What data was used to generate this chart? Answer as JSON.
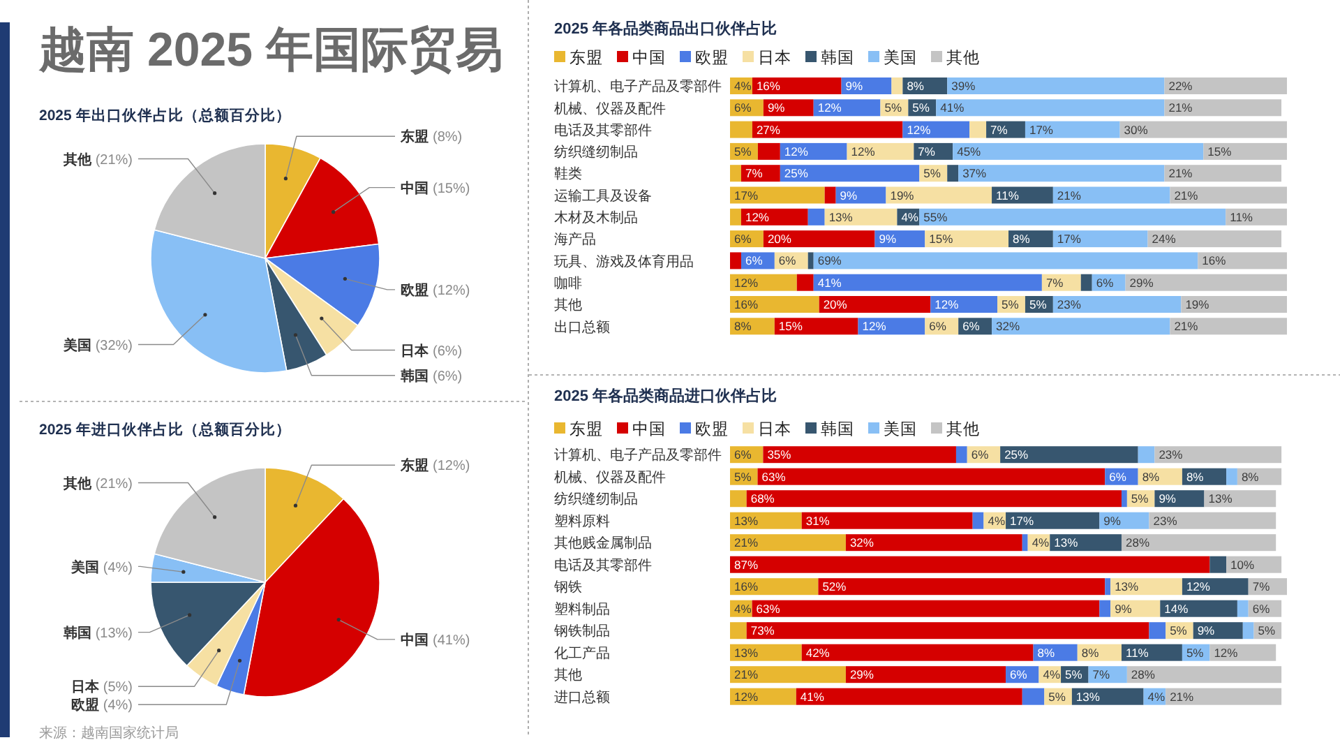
{
  "chart_data": [
    {
      "type": "pie",
      "title": "越南 2025 年国际贸易",
      "subtitle": "2025 年出口伙伴占比（总额百分比）",
      "categories": [
        "东盟",
        "中国",
        "欧盟",
        "日本",
        "韩国",
        "美国",
        "其他"
      ],
      "values": [
        8,
        15,
        12,
        6,
        6,
        32,
        21
      ],
      "colors": [
        "#e9b730",
        "#d50000",
        "#4b7be5",
        "#f6e0a3",
        "#37566f",
        "#88bff5",
        "#c4c4c4"
      ],
      "value_labels": [
        "(8%)",
        "(15%)",
        "(12%)",
        "(6%)",
        "(6%)",
        "(32%)",
        "(21%)"
      ]
    },
    {
      "type": "pie",
      "title": "2025 年进口伙伴占比（总额百分比）",
      "categories": [
        "东盟",
        "中国",
        "欧盟",
        "日本",
        "韩国",
        "美国",
        "其他"
      ],
      "values": [
        12,
        41,
        4,
        5,
        13,
        4,
        21
      ],
      "colors": [
        "#e9b730",
        "#d50000",
        "#4b7be5",
        "#f6e0a3",
        "#37566f",
        "#88bff5",
        "#c4c4c4"
      ],
      "value_labels": [
        "(12%)",
        "(41%)",
        "(4%)",
        "(5%)",
        "(13%)",
        "(4%)",
        "(21%)"
      ],
      "annotations": [
        "来源：越南国家统计局"
      ]
    },
    {
      "type": "bar",
      "title": "2025 年各品类商品出口伙伴占比",
      "orientation": "horizontal",
      "stacked": true,
      "legend": "top left",
      "tick_labels": "y",
      "xlim": [
        0,
        100
      ],
      "categories": [
        "计算机、电子产品及零部件",
        "机械、仪器及配件",
        "电话及其零部件",
        "纺织缝纫制品",
        "鞋类",
        "运输工具及设备",
        "木材及木制品",
        "海产品",
        "玩具、游戏及体育用品",
        "咖啡",
        "其他",
        "出口总额"
      ],
      "series": [
        {
          "name": "东盟",
          "color": "#e9b730",
          "values": [
            4,
            6,
            4,
            5,
            2,
            17,
            2,
            6,
            null,
            12,
            16,
            8
          ],
          "value_labels": [
            "4%",
            "6%",
            null,
            "5%",
            null,
            "17%",
            null,
            "6%",
            null,
            "12%",
            "16%",
            "8%"
          ]
        },
        {
          "name": "中国",
          "color": "#d50000",
          "values": [
            16,
            9,
            27,
            4,
            7,
            2,
            12,
            20,
            2,
            3,
            20,
            15
          ],
          "value_labels": [
            "16%",
            "9%",
            "27%",
            null,
            "7%",
            null,
            "12%",
            "20%",
            null,
            null,
            "20%",
            "15%"
          ]
        },
        {
          "name": "欧盟",
          "color": "#4b7be5",
          "values": [
            9,
            12,
            12,
            12,
            25,
            9,
            3,
            9,
            6,
            41,
            12,
            12
          ],
          "value_labels": [
            "9%",
            "12%",
            "12%",
            "12%",
            "25%",
            "9%",
            null,
            "9%",
            "6%",
            "41%",
            "12%",
            "12%"
          ]
        },
        {
          "name": "日本",
          "color": "#f6e0a3",
          "values": [
            2,
            5,
            3,
            12,
            5,
            19,
            13,
            15,
            6,
            7,
            5,
            6
          ],
          "value_labels": [
            null,
            "5%",
            null,
            "12%",
            "5%",
            "19%",
            "13%",
            "15%",
            "6%",
            "7%",
            "5%",
            "6%"
          ]
        },
        {
          "name": "韩国",
          "color": "#37566f",
          "values": [
            8,
            5,
            7,
            7,
            2,
            11,
            4,
            8,
            1,
            2,
            5,
            6
          ],
          "value_labels": [
            "8%",
            "5%",
            "7%",
            "7%",
            null,
            "11%",
            "4%",
            "8%",
            null,
            null,
            "5%",
            "6%"
          ]
        },
        {
          "name": "美国",
          "color": "#88bff5",
          "values": [
            39,
            41,
            17,
            45,
            37,
            21,
            55,
            17,
            69,
            6,
            23,
            32
          ],
          "value_labels": [
            "39%",
            "41%",
            "17%",
            "45%",
            "37%",
            "21%",
            "55%",
            "17%",
            "69%",
            "6%",
            "23%",
            "32%"
          ]
        },
        {
          "name": "其他",
          "color": "#c4c4c4",
          "values": [
            22,
            21,
            30,
            15,
            21,
            21,
            11,
            24,
            16,
            29,
            19,
            21
          ],
          "value_labels": [
            "22%",
            "21%",
            "30%",
            "15%",
            "21%",
            "21%",
            "11%",
            "24%",
            "16%",
            "29%",
            "19%",
            "21%"
          ]
        }
      ]
    },
    {
      "type": "bar",
      "title": "2025 年各品类商品进口伙伴占比",
      "orientation": "horizontal",
      "stacked": true,
      "legend": "top left",
      "tick_labels": "y",
      "xlim": [
        0,
        101
      ],
      "categories": [
        "计算机、电子产品及零部件",
        "机械、仪器及配件",
        "纺织缝纫制品",
        "塑料原料",
        "其他贱金属制品",
        "电话及其零部件",
        "钢铁",
        "塑料制品",
        "钢铁制品",
        "化工产品",
        "其他",
        "进口总额"
      ],
      "series": [
        {
          "name": "东盟",
          "color": "#e9b730",
          "values": [
            6,
            5,
            3,
            13,
            21,
            null,
            16,
            4,
            3,
            13,
            21,
            12
          ],
          "value_labels": [
            "6%",
            "5%",
            null,
            "13%",
            "21%",
            null,
            "16%",
            "4%",
            null,
            "13%",
            "21%",
            "12%"
          ]
        },
        {
          "name": "中国",
          "color": "#d50000",
          "values": [
            35,
            63,
            68,
            31,
            32,
            87,
            52,
            63,
            73,
            42,
            29,
            41
          ],
          "value_labels": [
            "35%",
            "63%",
            "68%",
            "31%",
            "32%",
            "87%",
            "52%",
            "63%",
            "73%",
            "42%",
            "29%",
            "41%"
          ]
        },
        {
          "name": "欧盟",
          "color": "#4b7be5",
          "values": [
            2,
            6,
            1,
            2,
            1,
            null,
            1,
            2,
            3,
            8,
            6,
            4
          ],
          "value_labels": [
            null,
            "6%",
            null,
            null,
            null,
            null,
            null,
            null,
            null,
            "8%",
            "6%",
            null
          ]
        },
        {
          "name": "日本",
          "color": "#f6e0a3",
          "values": [
            6,
            8,
            5,
            4,
            4,
            null,
            13,
            9,
            5,
            8,
            4,
            5
          ],
          "value_labels": [
            "6%",
            "8%",
            "5%",
            "4%",
            "4%",
            null,
            "13%",
            "9%",
            "5%",
            "8%",
            "4%",
            "5%"
          ]
        },
        {
          "name": "韩国",
          "color": "#37566f",
          "values": [
            25,
            8,
            9,
            17,
            13,
            3,
            12,
            14,
            9,
            11,
            5,
            13
          ],
          "value_labels": [
            "25%",
            "8%",
            "9%",
            "17%",
            "13%",
            null,
            "12%",
            "14%",
            "9%",
            "11%",
            "5%",
            "13%"
          ]
        },
        {
          "name": "美国",
          "color": "#88bff5",
          "values": [
            3,
            2,
            null,
            9,
            null,
            null,
            null,
            2,
            2,
            5,
            7,
            4
          ],
          "value_labels": [
            null,
            null,
            null,
            "9%",
            null,
            null,
            null,
            null,
            null,
            "5%",
            "7%",
            "4%"
          ]
        },
        {
          "name": "其他",
          "color": "#c4c4c4",
          "values": [
            23,
            8,
            13,
            23,
            28,
            10,
            7,
            6,
            5,
            12,
            28,
            21
          ],
          "value_labels": [
            "23%",
            "8%",
            "13%",
            "23%",
            "28%",
            "10%",
            "7%",
            "6%",
            "5%",
            "12%",
            "28%",
            "21%"
          ]
        }
      ]
    }
  ]
}
